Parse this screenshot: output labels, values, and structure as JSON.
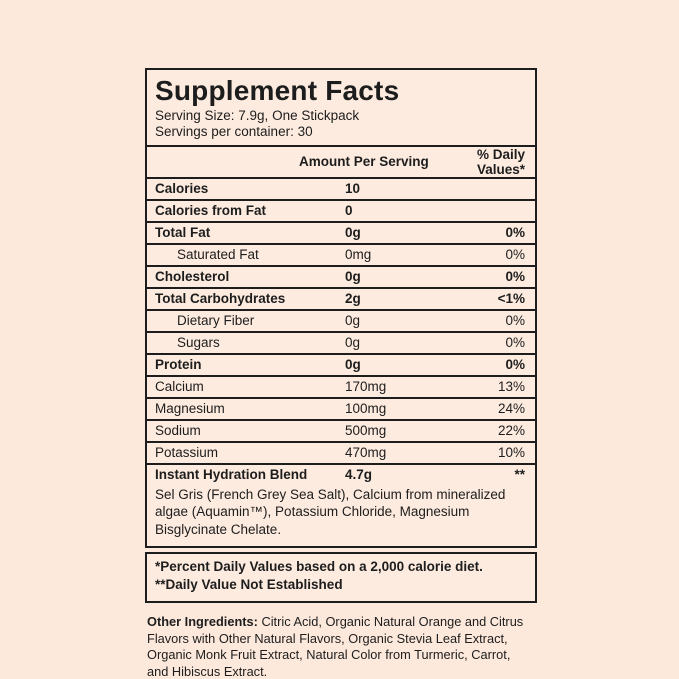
{
  "page": {
    "background_color": "#fde9dc",
    "panel_color": "#fdebdf",
    "ink_color": "#1d1d1d"
  },
  "label": {
    "title": "Supplement Facts",
    "serving_size": "Serving Size: 7.9g, One Stickpack",
    "servings_per_container": "Servings per container: 30",
    "columns": {
      "amount": "Amount Per Serving",
      "daily_value": "% Daily Values*"
    },
    "rows": [
      {
        "name": "Calories",
        "amount": "10",
        "dv": "",
        "bold": true,
        "indent": false
      },
      {
        "name": "Calories from Fat",
        "amount": "0",
        "dv": "",
        "bold": true,
        "indent": false
      },
      {
        "name": "Total Fat",
        "amount": "0g",
        "dv": "0%",
        "bold": true,
        "indent": false
      },
      {
        "name": "Saturated Fat",
        "amount": "0mg",
        "dv": "0%",
        "bold": false,
        "indent": true
      },
      {
        "name": "Cholesterol",
        "amount": "0g",
        "dv": "0%",
        "bold": true,
        "indent": false
      },
      {
        "name": "Total Carbohydrates",
        "amount": "2g",
        "dv": "<1%",
        "bold": true,
        "indent": false
      },
      {
        "name": "Dietary Fiber",
        "amount": "0g",
        "dv": "0%",
        "bold": false,
        "indent": true
      },
      {
        "name": "Sugars",
        "amount": "0g",
        "dv": "0%",
        "bold": false,
        "indent": true
      },
      {
        "name": "Protein",
        "amount": "0g",
        "dv": "0%",
        "bold": true,
        "indent": false
      },
      {
        "name": "Calcium",
        "amount": "170mg",
        "dv": "13%",
        "bold": false,
        "indent": false
      },
      {
        "name": "Magnesium",
        "amount": "100mg",
        "dv": "24%",
        "bold": false,
        "indent": false
      },
      {
        "name": "Sodium",
        "amount": "500mg",
        "dv": "22%",
        "bold": false,
        "indent": false
      },
      {
        "name": "Potassium",
        "amount": "470mg",
        "dv": "10%",
        "bold": false,
        "indent": false
      },
      {
        "name": "Instant Hydration Blend",
        "amount": "4.7g",
        "dv": "**",
        "bold": true,
        "indent": false
      }
    ],
    "blend_description": "Sel Gris (French Grey Sea Salt), Calcium from mineralized algae (Aquamin™), Potassium Chloride, Magnesium Bisglycinate Chelate.",
    "footnotes": [
      "*Percent Daily Values based on a 2,000 calorie diet.",
      "**Daily Value Not Established"
    ],
    "other_ingredients_label": "Other Ingredients:",
    "other_ingredients_text": " Citric Acid, Organic Natural Orange and Citrus Flavors with Other Natural Flavors, Organic Stevia Leaf Extract, Organic Monk Fruit Extract, Natural Color from Turmeric, Carrot, and Hibiscus Extract."
  }
}
